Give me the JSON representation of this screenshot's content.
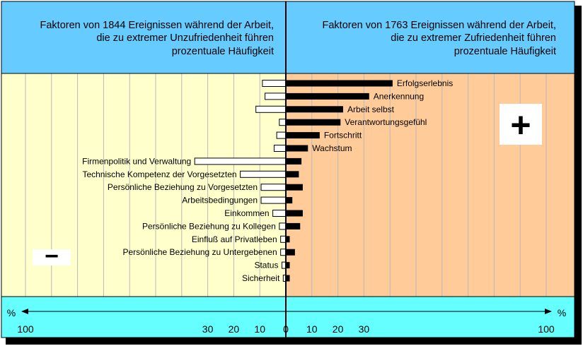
{
  "chart_data": {
    "type": "bar",
    "title_left": [
      "Faktoren von 1844 Ereignissen während der Arbeit,",
      "die zu extremer Unzufriedenheit führen",
      "prozentuale Häufigkeit"
    ],
    "title_right": [
      "Faktoren von 1763 Ereignissen während der Arbeit,",
      "die zu extremer Zufriedenheit führen",
      "prozentuale Häufigkeit"
    ],
    "minus_symbol": "−",
    "plus_symbol": "+",
    "axis": {
      "unit": "%",
      "xlim": [
        -100,
        100
      ],
      "ticks": [
        {
          "value": -100,
          "label": "100"
        },
        {
          "value": -30,
          "label": "30"
        },
        {
          "value": -20,
          "label": "20"
        },
        {
          "value": -10,
          "label": "10"
        },
        {
          "value": 0,
          "label": "0"
        },
        {
          "value": 10,
          "label": "10"
        },
        {
          "value": 20,
          "label": "20"
        },
        {
          "value": 30,
          "label": "30"
        },
        {
          "value": 100,
          "label": "100"
        }
      ]
    },
    "series": [
      {
        "name": "Unzufriedenheit",
        "color": "#ffffff"
      },
      {
        "name": "Zufriedenheit",
        "color": "#000000"
      }
    ],
    "factors": [
      {
        "label": "Erfolgserlebnis",
        "label_side": "right",
        "dissatisfaction": 9,
        "satisfaction": 41
      },
      {
        "label": "Anerkennung",
        "label_side": "right",
        "dissatisfaction": 8,
        "satisfaction": 32
      },
      {
        "label": "Arbeit selbst",
        "label_side": "right",
        "dissatisfaction": 11.5,
        "satisfaction": 22
      },
      {
        "label": "Verantwortungsgefühl",
        "label_side": "right",
        "dissatisfaction": 2.5,
        "satisfaction": 21
      },
      {
        "label": "Fortschritt",
        "label_side": "right",
        "dissatisfaction": 3.5,
        "satisfaction": 13
      },
      {
        "label": "Wachstum",
        "label_side": "right",
        "dissatisfaction": 4.5,
        "satisfaction": 8.5
      },
      {
        "label": "Firmenpolitik und Verwaltung",
        "label_side": "left",
        "dissatisfaction": 35,
        "satisfaction": 6
      },
      {
        "label": "Technische Kompetenz der Vorgesetzten",
        "label_side": "left",
        "dissatisfaction": 17.5,
        "satisfaction": 5
      },
      {
        "label": "Persönliche Beziehung zu Vorgesetzten",
        "label_side": "left",
        "dissatisfaction": 9.5,
        "satisfaction": 6.5
      },
      {
        "label": "Arbeitsbedingungen",
        "label_side": "left",
        "dissatisfaction": 9.5,
        "satisfaction": 2.5
      },
      {
        "label": "Einkommen",
        "label_side": "left",
        "dissatisfaction": 5,
        "satisfaction": 6.5
      },
      {
        "label": "Persönliche Beziehung zu Kollegen",
        "label_side": "left",
        "dissatisfaction": 2.5,
        "satisfaction": 5.5
      },
      {
        "label": "Einfluß auf Privatleben",
        "label_side": "left",
        "dissatisfaction": 2,
        "satisfaction": 1.5
      },
      {
        "label": "Persönliche Beziehung zu Untergebenen",
        "label_side": "left",
        "dissatisfaction": 2,
        "satisfaction": 3.5
      },
      {
        "label": "Status",
        "label_side": "left",
        "dissatisfaction": 1.5,
        "satisfaction": 1.5
      },
      {
        "label": "Sicherheit",
        "label_side": "left",
        "dissatisfaction": 1,
        "satisfaction": 1.5
      }
    ],
    "colors": {
      "header_bg": "#66ccff",
      "left_panel_bg": "#ffffcc",
      "right_panel_bg": "#ffcc99",
      "axis_band_bg": "#66ffff",
      "shadow": "#000000"
    }
  }
}
